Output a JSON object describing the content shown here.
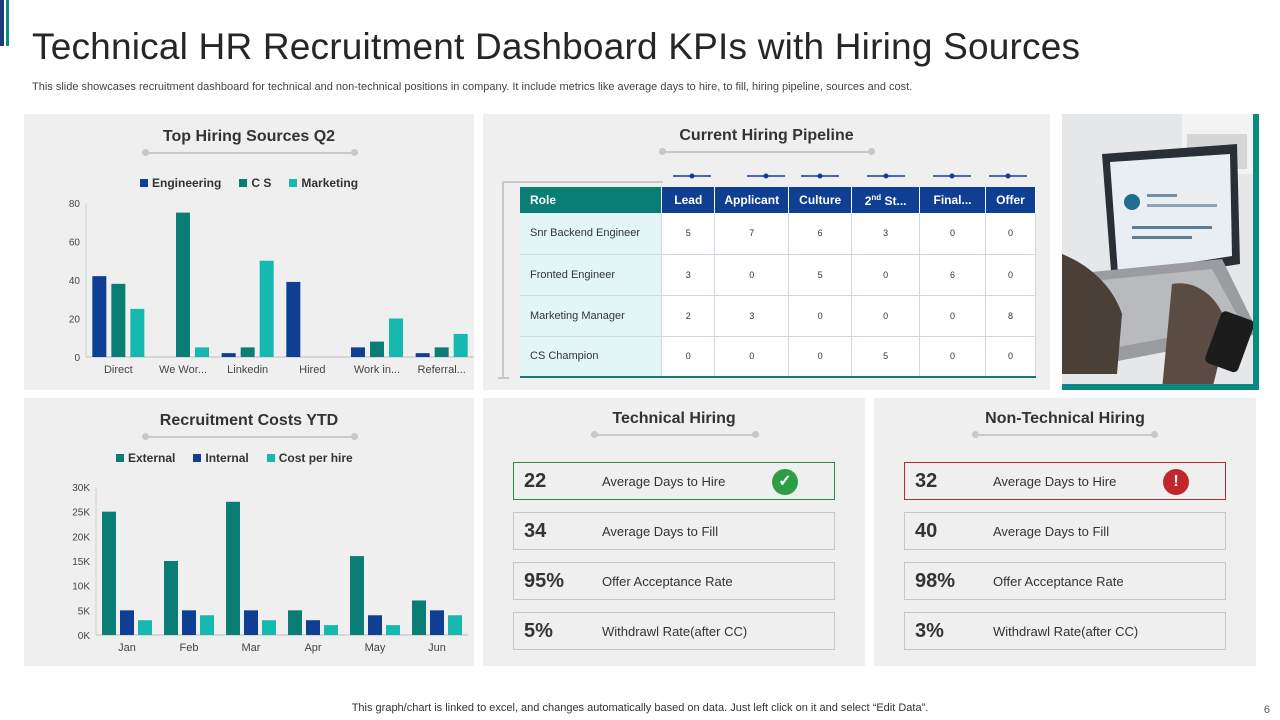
{
  "header": {
    "title": "Technical HR Recruitment Dashboard KPIs with Hiring Sources",
    "subtitle": "This slide showcases recruitment dashboard for technical and non-technical positions in company. It include metrics like average days to hire, to fill, hiring pipeline, sources and cost."
  },
  "sources_panel": {
    "title": "Top Hiring Sources Q2",
    "legend": [
      "Engineering",
      "C S",
      "Marketing"
    ]
  },
  "costs_panel": {
    "title": "Recruitment Costs YTD",
    "legend": [
      "External",
      "Internal",
      "Cost per hire"
    ]
  },
  "pipeline_panel": {
    "title": "Current Hiring Pipeline",
    "columns": [
      "Role",
      "Lead",
      "Applicant",
      "Culture",
      "2nd St...",
      "Final...",
      "Offer"
    ],
    "rows": [
      {
        "role": "Snr Backend Engineer",
        "values": [
          "5",
          "7",
          "6",
          "3",
          "0",
          "0"
        ]
      },
      {
        "role": "Fronted Engineer",
        "values": [
          "3",
          "0",
          "5",
          "0",
          "6",
          "0"
        ]
      },
      {
        "role": "Marketing Manager",
        "values": [
          "2",
          "3",
          "0",
          "0",
          "0",
          "8"
        ]
      },
      {
        "role": "CS Champion",
        "values": [
          "0",
          "0",
          "0",
          "5",
          "0",
          "0"
        ]
      }
    ]
  },
  "technical": {
    "title": "Technical Hiring",
    "kpis": [
      {
        "value": "22",
        "label": "Average  Days to Hire"
      },
      {
        "value": "34",
        "label": "Average  Days to Fill"
      },
      {
        "value": "95%",
        "label": "Offer  Acceptance Rate"
      },
      {
        "value": "5%",
        "label": "Withdrawl Rate(after  CC)"
      }
    ]
  },
  "non_technical": {
    "title": "Non-Technical Hiring",
    "kpis": [
      {
        "value": "32",
        "label": "Average  Days to Hire"
      },
      {
        "value": "40",
        "label": "Average  Days to Fill"
      },
      {
        "value": "98%",
        "label": "Offer  Acceptance Rate"
      },
      {
        "value": "3%",
        "label": "Withdrawl Rate(after  CC)"
      }
    ]
  },
  "icons": {
    "good": "check-circle-icon",
    "bad": "exclamation-circle-icon"
  },
  "colors": {
    "navy": "#0e3f93",
    "teal": "#0a7e74",
    "aqua": "#17b8b0",
    "good": "#2e9e45",
    "bad": "#c0282e"
  },
  "footer": {
    "note": "This graph/chart is linked to excel,  and changes automatically based on data. Just left click on it and select “Edit Data”.",
    "page": "6"
  },
  "chart_data": [
    {
      "type": "bar",
      "title": "Top Hiring Sources Q2",
      "categories": [
        "Direct",
        "We Wor...",
        "Linkedin",
        "Hired",
        "Work in...",
        "Referral..."
      ],
      "series": [
        {
          "name": "Engineering",
          "values": [
            42,
            0,
            2,
            39,
            5,
            2
          ]
        },
        {
          "name": "C S",
          "values": [
            38,
            75,
            5,
            0,
            8,
            5
          ]
        },
        {
          "name": "Marketing",
          "values": [
            25,
            5,
            50,
            0,
            20,
            12
          ]
        }
      ],
      "ylim": [
        0,
        80
      ],
      "yticks": [
        "0",
        "20",
        "40",
        "60",
        "80"
      ],
      "legend": "top"
    },
    {
      "type": "bar",
      "title": "Recruitment Costs YTD",
      "categories": [
        "Jan",
        "Feb",
        "Mar",
        "Apr",
        "May",
        "Jun"
      ],
      "series": [
        {
          "name": "External",
          "values": [
            25000,
            15000,
            27000,
            5000,
            16000,
            7000
          ]
        },
        {
          "name": "Internal",
          "values": [
            5000,
            5000,
            5000,
            3000,
            4000,
            5000
          ]
        },
        {
          "name": "Cost per hire",
          "values": [
            3000,
            4000,
            3000,
            2000,
            2000,
            4000
          ]
        }
      ],
      "ylim": [
        0,
        30000
      ],
      "yticks": [
        "0K",
        "5K",
        "10K",
        "15K",
        "20K",
        "25K",
        "30K"
      ],
      "legend": "top"
    }
  ]
}
